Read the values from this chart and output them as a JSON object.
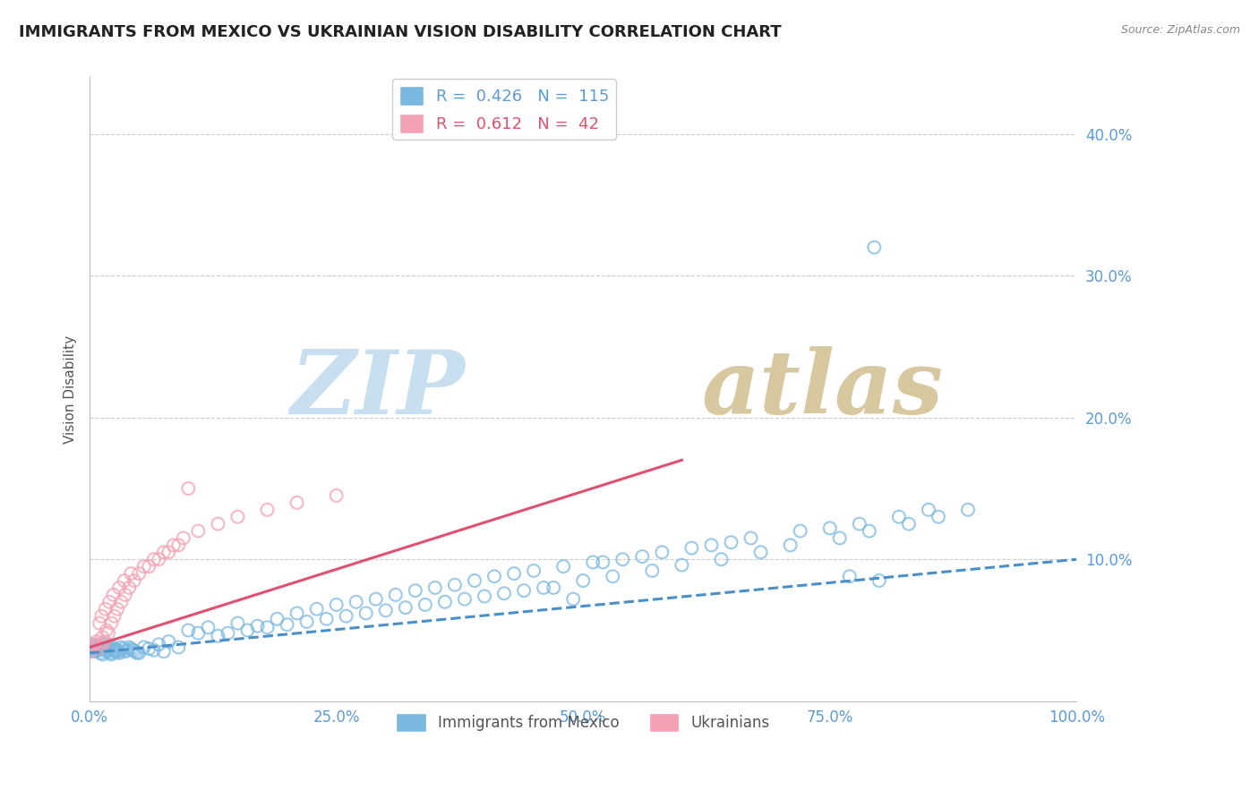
{
  "title": "IMMIGRANTS FROM MEXICO VS UKRAINIAN VISION DISABILITY CORRELATION CHART",
  "source_text": "Source: ZipAtlas.com",
  "ylabel": "Vision Disability",
  "legend_label_1": "Immigrants from Mexico",
  "legend_label_2": "Ukrainians",
  "R1": 0.426,
  "N1": 115,
  "R2": 0.612,
  "N2": 42,
  "color_blue": "#7ab8e0",
  "color_pink": "#f4a0b5",
  "color_blue_line": "#4a90c8",
  "color_pink_line": "#e05070",
  "color_title": "#222222",
  "color_axis_labels": "#5b9bd5",
  "watermark_zip": "ZIP",
  "watermark_atlas": "atlas",
  "watermark_color_zip": "#c8dff0",
  "watermark_color_atlas": "#d8c8a0",
  "xlim": [
    0.0,
    1.0
  ],
  "ylim": [
    0.0,
    0.44
  ],
  "yticks": [
    0.1,
    0.2,
    0.3,
    0.4
  ],
  "ytick_labels": [
    "10.0%",
    "20.0%",
    "30.0%",
    "40.0%"
  ],
  "xticks": [
    0.0,
    0.25,
    0.5,
    0.75,
    1.0
  ],
  "xtick_labels": [
    "0.0%",
    "25.0%",
    "50.0%",
    "75.0%",
    "100.0%"
  ],
  "blue_x": [
    0.001,
    0.002,
    0.003,
    0.004,
    0.005,
    0.006,
    0.007,
    0.008,
    0.009,
    0.01,
    0.011,
    0.012,
    0.013,
    0.014,
    0.015,
    0.016,
    0.017,
    0.018,
    0.019,
    0.02,
    0.021,
    0.022,
    0.023,
    0.024,
    0.025,
    0.026,
    0.027,
    0.028,
    0.029,
    0.03,
    0.032,
    0.034,
    0.036,
    0.038,
    0.04,
    0.042,
    0.044,
    0.046,
    0.048,
    0.05,
    0.055,
    0.06,
    0.065,
    0.07,
    0.075,
    0.08,
    0.09,
    0.1,
    0.11,
    0.12,
    0.13,
    0.15,
    0.17,
    0.19,
    0.21,
    0.23,
    0.25,
    0.27,
    0.29,
    0.31,
    0.33,
    0.35,
    0.37,
    0.39,
    0.41,
    0.43,
    0.45,
    0.48,
    0.51,
    0.54,
    0.56,
    0.58,
    0.61,
    0.63,
    0.65,
    0.67,
    0.72,
    0.75,
    0.78,
    0.82,
    0.14,
    0.16,
    0.18,
    0.2,
    0.22,
    0.24,
    0.26,
    0.28,
    0.3,
    0.32,
    0.34,
    0.36,
    0.38,
    0.4,
    0.42,
    0.44,
    0.46,
    0.5,
    0.53,
    0.57,
    0.6,
    0.64,
    0.68,
    0.71,
    0.76,
    0.79,
    0.83,
    0.86,
    0.89,
    0.77,
    0.85,
    0.8,
    0.52,
    0.47,
    0.49,
    0.795
  ],
  "blue_y": [
    0.04,
    0.038,
    0.036,
    0.037,
    0.035,
    0.039,
    0.038,
    0.036,
    0.037,
    0.036,
    0.034,
    0.037,
    0.033,
    0.04,
    0.038,
    0.04,
    0.038,
    0.035,
    0.036,
    0.037,
    0.034,
    0.033,
    0.038,
    0.036,
    0.037,
    0.035,
    0.036,
    0.036,
    0.035,
    0.034,
    0.038,
    0.037,
    0.035,
    0.036,
    0.038,
    0.037,
    0.036,
    0.035,
    0.034,
    0.034,
    0.038,
    0.037,
    0.036,
    0.04,
    0.035,
    0.042,
    0.038,
    0.05,
    0.048,
    0.052,
    0.046,
    0.055,
    0.053,
    0.058,
    0.062,
    0.065,
    0.068,
    0.07,
    0.072,
    0.075,
    0.078,
    0.08,
    0.082,
    0.085,
    0.088,
    0.09,
    0.092,
    0.095,
    0.098,
    0.1,
    0.102,
    0.105,
    0.108,
    0.11,
    0.112,
    0.115,
    0.12,
    0.122,
    0.125,
    0.13,
    0.048,
    0.05,
    0.052,
    0.054,
    0.056,
    0.058,
    0.06,
    0.062,
    0.064,
    0.066,
    0.068,
    0.07,
    0.072,
    0.074,
    0.076,
    0.078,
    0.08,
    0.085,
    0.088,
    0.092,
    0.096,
    0.1,
    0.105,
    0.11,
    0.115,
    0.12,
    0.125,
    0.13,
    0.135,
    0.088,
    0.135,
    0.085,
    0.098,
    0.08,
    0.072,
    0.32
  ],
  "pink_x": [
    0.001,
    0.003,
    0.005,
    0.007,
    0.009,
    0.011,
    0.013,
    0.015,
    0.017,
    0.019,
    0.022,
    0.025,
    0.028,
    0.032,
    0.036,
    0.04,
    0.045,
    0.05,
    0.06,
    0.07,
    0.08,
    0.09,
    0.01,
    0.012,
    0.016,
    0.02,
    0.024,
    0.03,
    0.035,
    0.042,
    0.055,
    0.065,
    0.075,
    0.085,
    0.095,
    0.11,
    0.13,
    0.15,
    0.18,
    0.21,
    0.25,
    0.1
  ],
  "pink_y": [
    0.035,
    0.038,
    0.04,
    0.042,
    0.04,
    0.038,
    0.045,
    0.042,
    0.05,
    0.048,
    0.055,
    0.06,
    0.065,
    0.07,
    0.075,
    0.08,
    0.085,
    0.09,
    0.095,
    0.1,
    0.105,
    0.11,
    0.055,
    0.06,
    0.065,
    0.07,
    0.075,
    0.08,
    0.085,
    0.09,
    0.095,
    0.1,
    0.105,
    0.11,
    0.115,
    0.12,
    0.125,
    0.13,
    0.135,
    0.14,
    0.145,
    0.15
  ],
  "blue_trend_x": [
    0.0,
    1.0
  ],
  "blue_trend_y": [
    0.034,
    0.1
  ],
  "pink_trend_x": [
    0.0,
    0.6
  ],
  "pink_trend_y": [
    0.038,
    0.17
  ],
  "fig_bg": "#ffffff",
  "plot_bg": "#ffffff",
  "grid_color": "#cccccc",
  "title_fontsize": 13,
  "axis_label_fontsize": 11,
  "tick_fontsize": 12
}
